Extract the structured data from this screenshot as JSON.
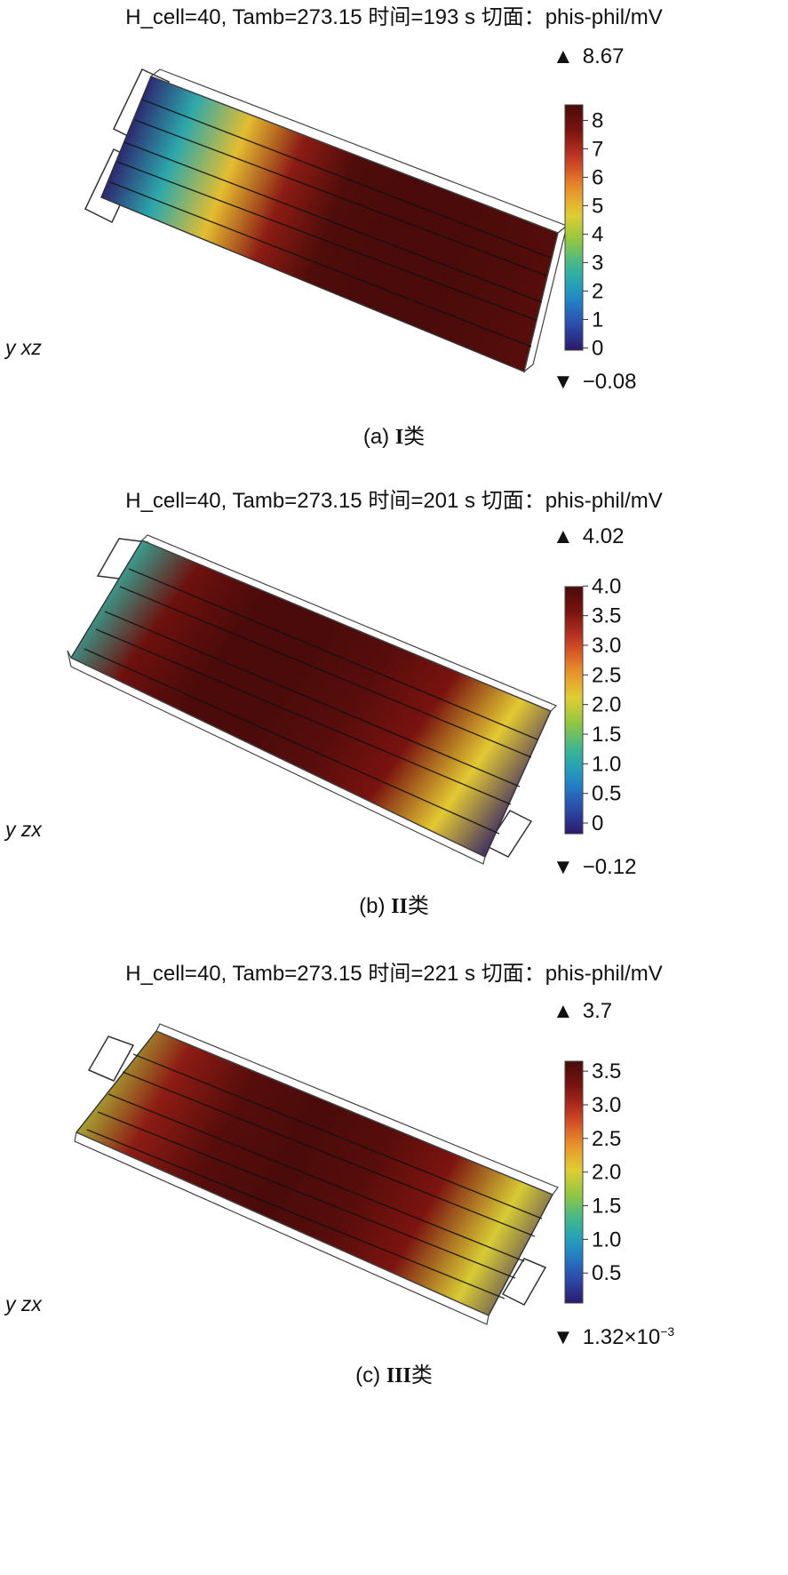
{
  "panels": [
    {
      "title": "H_cell=40, Tamb=273.15 时间=193 s 切面：phis-phil/mV",
      "caption_prefix": "(a) ",
      "caption_roman": "I",
      "caption_suffix": "类",
      "axes": "y xz",
      "max_label": "8.67",
      "min_label": "−0.08",
      "min_sup": ""
    },
    {
      "title": "H_cell=40, Tamb=273.15 时间=201 s 切面：phis-phil/mV",
      "caption_prefix": "(b) ",
      "caption_roman": "II",
      "caption_suffix": "类",
      "axes": "y zx",
      "max_label": "4.02",
      "min_label": "−0.12",
      "min_sup": ""
    },
    {
      "title": "H_cell=40, Tamb=273.15 时间=221 s 切面：phis-phil/mV",
      "caption_prefix": "(c) ",
      "caption_roman": "III",
      "caption_suffix": "类",
      "axes": "y zx",
      "max_label": "3.7",
      "min_label": "1.32×10",
      "min_sup": "−3"
    }
  ],
  "chart_data": [
    {
      "type": "heatmap",
      "title": "H_cell=40, Tamb=273.15 时间=193 s 切面：phis-phil/mV",
      "colorbar": {
        "min": -0.08,
        "max": 8.67,
        "ticks": [
          "0",
          "1",
          "2",
          "3",
          "4",
          "5",
          "6",
          "7",
          "8"
        ],
        "tick_values": [
          0,
          1,
          2,
          3,
          4,
          5,
          6,
          7,
          8
        ]
      },
      "gradient_along_length": [
        -0.08,
        2.5,
        5.0,
        7.5,
        8.6,
        8.67,
        8.67,
        8.6,
        8.4
      ]
    },
    {
      "type": "heatmap",
      "title": "H_cell=40, Tamb=273.15 时间=201 s 切面：phis-phil/mV",
      "colorbar": {
        "min": -0.12,
        "max": 4.02,
        "ticks": [
          "0",
          "0.5",
          "1.0",
          "1.5",
          "2.0",
          "2.5",
          "3.0",
          "3.5",
          "4.0"
        ],
        "tick_values": [
          0,
          0.5,
          1.0,
          1.5,
          2.0,
          2.5,
          3.0,
          3.5,
          4.0
        ]
      },
      "gradient_along_length": [
        1.2,
        3.7,
        4.0,
        4.02,
        3.9,
        3.6,
        2.2,
        -0.12
      ]
    },
    {
      "type": "heatmap",
      "title": "H_cell=40, Tamb=273.15 时间=221 s 切面：phis-phil/mV",
      "colorbar": {
        "min": 0.00132,
        "max": 3.7,
        "ticks": [
          "0.5",
          "1.0",
          "1.5",
          "2.0",
          "2.5",
          "3.0",
          "3.5"
        ],
        "tick_values": [
          0.5,
          1.0,
          1.5,
          2.0,
          2.5,
          3.0,
          3.5
        ]
      },
      "gradient_along_length": [
        1.8,
        3.2,
        3.6,
        3.7,
        3.6,
        3.3,
        2.0,
        0.00132
      ]
    }
  ],
  "colormap": [
    "#2b1a6b",
    "#2c4fb0",
    "#1f8fc8",
    "#35b59a",
    "#8fc741",
    "#e3cc32",
    "#e98a2a",
    "#c93a24",
    "#7d1410",
    "#4a0b0a"
  ]
}
